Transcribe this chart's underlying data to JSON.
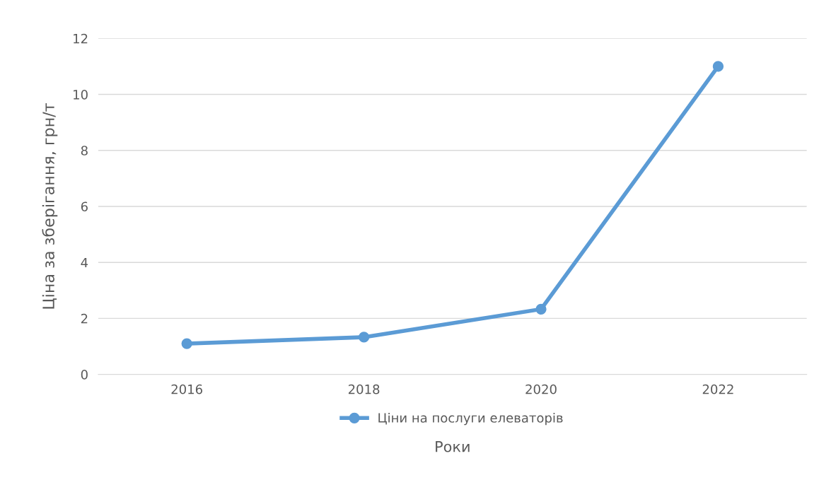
{
  "chart_data": {
    "type": "line",
    "xlabel": "Роки",
    "ylabel": "Ціна за зберігання, грн/т",
    "categories": [
      "2016",
      "2018",
      "2020",
      "2022"
    ],
    "series": [
      {
        "name": "Ціни на послуги елеваторів",
        "color": "#5b9bd5",
        "values": [
          1.1,
          1.33,
          2.33,
          11.0
        ]
      }
    ],
    "ylim": [
      0,
      12
    ],
    "yticks": [
      0,
      2,
      4,
      6,
      8,
      10,
      12
    ],
    "grid": "y",
    "legend": "bottom",
    "marker": "circle",
    "line_style": "solid"
  }
}
